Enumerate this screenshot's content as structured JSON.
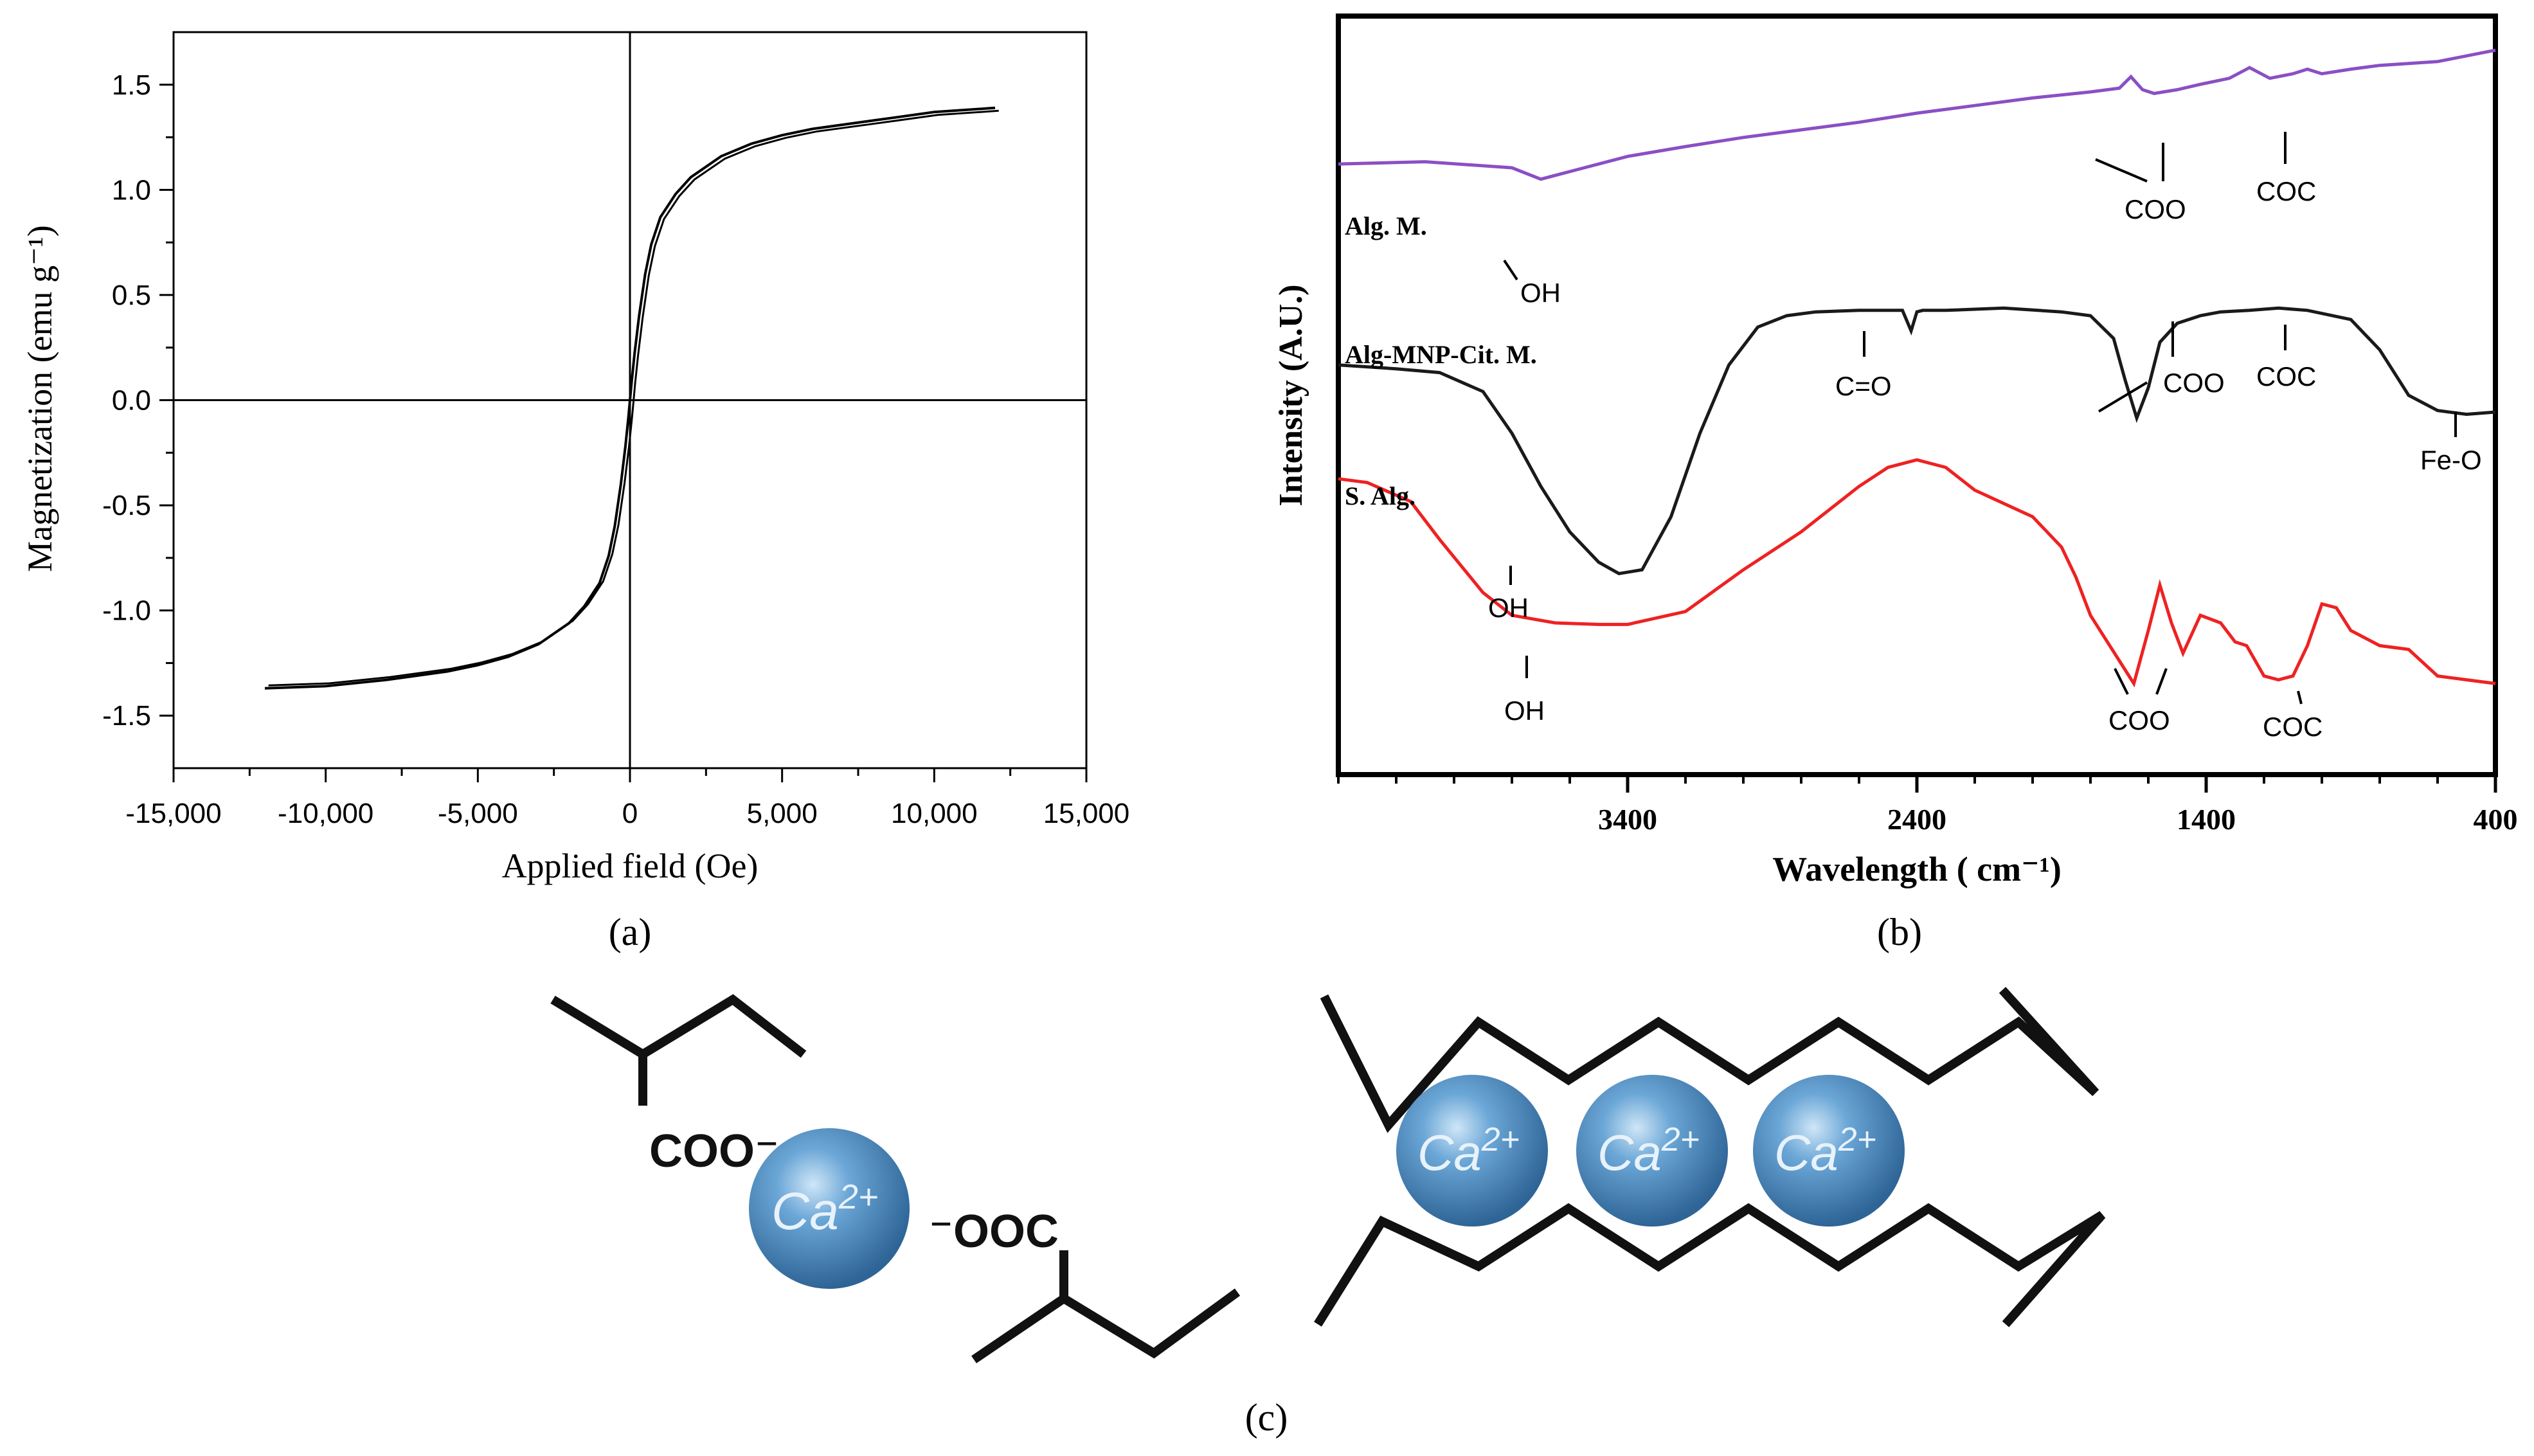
{
  "panels": {
    "a": {
      "label": "(a)",
      "chart_data": {
        "type": "line",
        "xlabel": "Applied field (Oe)",
        "ylabel": "Magnetization (emu g⁻¹)",
        "xlim": [
          -15000,
          15000
        ],
        "ylim": [
          -1.75,
          1.75
        ],
        "xticks": [
          -15000,
          -10000,
          -5000,
          0,
          5000,
          10000,
          15000
        ],
        "xtick_labels": [
          "-15,000",
          "-10,000",
          "-5,000",
          "0",
          "5,000",
          "10,000",
          "15,000"
        ],
        "yticks": [
          -1.5,
          -1.0,
          -0.5,
          0.0,
          0.5,
          1.0,
          1.5
        ],
        "ytick_labels": [
          "-1.5",
          "-1.0",
          "-0.5",
          "0.0",
          "0.5",
          "1.0",
          "1.5"
        ],
        "color": "#000000",
        "series": [
          {
            "x": [
              -12000,
              -10000,
              -8000,
              -6000,
              -5000,
              -4000,
              -3000,
              -2000,
              -1500,
              -1000,
              -700,
              -500,
              -300,
              -150,
              -50,
              0,
              50,
              150,
              300,
              500,
              700,
              1000,
              1500,
              2000,
              3000,
              4000,
              5000,
              6000,
              8000,
              10000,
              12000
            ],
            "y": [
              -1.37,
              -1.36,
              -1.33,
              -1.29,
              -1.26,
              -1.22,
              -1.16,
              -1.06,
              -0.98,
              -0.87,
              -0.74,
              -0.6,
              -0.4,
              -0.22,
              -0.08,
              0.0,
              0.08,
              0.22,
              0.4,
              0.6,
              0.74,
              0.87,
              0.98,
              1.06,
              1.16,
              1.22,
              1.26,
              1.29,
              1.33,
              1.37,
              1.39
            ]
          }
        ]
      }
    },
    "b": {
      "label": "(b)",
      "chart_data": {
        "type": "line",
        "xlabel": "Wavelength ( cm⁻¹)",
        "ylabel": "Intensity (A.U.)",
        "xlim": [
          4400,
          400
        ],
        "xticks": [
          3400,
          2400,
          1400,
          400
        ],
        "xtick_labels": [
          "3400",
          "2400",
          "1400",
          "400"
        ],
        "series": [
          {
            "name": "Alg. M.",
            "color": "#8a4fc4",
            "x": [
              4400,
              4100,
              3800,
              3700,
              3550,
              3400,
              3200,
              3000,
              2800,
              2600,
              2400,
              2200,
              2000,
              1800,
              1700,
              1660,
              1620,
              1580,
              1500,
              1420,
              1320,
              1250,
              1180,
              1100,
              1050,
              1000,
              900,
              800,
              600,
              400
            ],
            "y": [
              0.805,
              0.808,
              0.8,
              0.785,
              0.8,
              0.815,
              0.828,
              0.84,
              0.85,
              0.86,
              0.872,
              0.882,
              0.892,
              0.9,
              0.905,
              0.92,
              0.903,
              0.898,
              0.903,
              0.91,
              0.918,
              0.932,
              0.918,
              0.924,
              0.93,
              0.924,
              0.93,
              0.935,
              0.94,
              0.955
            ]
          },
          {
            "name": "Alg-MNP-Cit. M.",
            "color": "#1a1a1a",
            "x": [
              4400,
              4200,
              4050,
              3900,
              3800,
              3700,
              3600,
              3500,
              3430,
              3350,
              3250,
              3150,
              3050,
              2950,
              2850,
              2750,
              2600,
              2450,
              2420,
              2400,
              2380,
              2300,
              2100,
              1900,
              1800,
              1720,
              1680,
              1640,
              1600,
              1560,
              1500,
              1420,
              1350,
              1250,
              1150,
              1050,
              900,
              800,
              700,
              600,
              500,
              400
            ],
            "y": [
              0.54,
              0.535,
              0.53,
              0.505,
              0.45,
              0.38,
              0.32,
              0.28,
              0.265,
              0.27,
              0.34,
              0.45,
              0.54,
              0.59,
              0.605,
              0.61,
              0.612,
              0.612,
              0.585,
              0.61,
              0.612,
              0.612,
              0.615,
              0.61,
              0.605,
              0.575,
              0.52,
              0.47,
              0.51,
              0.57,
              0.595,
              0.605,
              0.61,
              0.612,
              0.615,
              0.612,
              0.6,
              0.56,
              0.5,
              0.48,
              0.475,
              0.478
            ]
          },
          {
            "name": "S. Alg.",
            "color": "#ee2222",
            "x": [
              4400,
              4300,
              4150,
              4050,
              3900,
              3800,
              3650,
              3500,
              3400,
              3200,
              3000,
              2800,
              2600,
              2500,
              2400,
              2300,
              2200,
              2000,
              1900,
              1850,
              1800,
              1700,
              1650,
              1600,
              1560,
              1520,
              1480,
              1420,
              1350,
              1300,
              1260,
              1200,
              1150,
              1100,
              1050,
              1000,
              950,
              900,
              850,
              800,
              700,
              600,
              500,
              400
            ],
            "y": [
              0.39,
              0.385,
              0.36,
              0.31,
              0.24,
              0.21,
              0.2,
              0.198,
              0.198,
              0.215,
              0.27,
              0.32,
              0.38,
              0.405,
              0.415,
              0.405,
              0.375,
              0.34,
              0.3,
              0.26,
              0.21,
              0.15,
              0.12,
              0.19,
              0.25,
              0.2,
              0.16,
              0.21,
              0.2,
              0.175,
              0.17,
              0.13,
              0.125,
              0.13,
              0.17,
              0.225,
              0.22,
              0.19,
              0.18,
              0.17,
              0.165,
              0.13,
              0.125,
              0.12
            ]
          }
        ],
        "annotations": [
          "OH",
          "COO",
          "COC",
          "C=O",
          "COO",
          "COC",
          "Fe-O",
          "OH",
          "OH",
          "COO",
          "COC"
        ]
      }
    },
    "c": {
      "label": "(c)",
      "left_labels": {
        "coo": "COO⁻",
        "ooc": "⁻OOC"
      },
      "ion_label": "Ca",
      "ion_charge": "2+",
      "ion_color": "#4f8fc6"
    }
  }
}
